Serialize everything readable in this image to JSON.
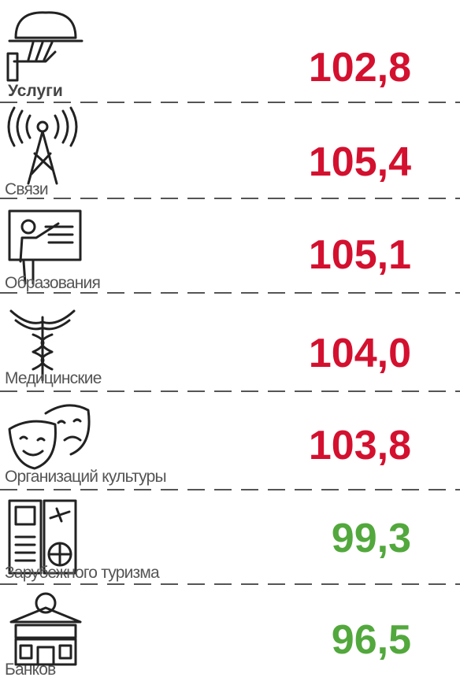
{
  "rows": [
    {
      "label": "Услуги",
      "value": "102,8",
      "color": "#d4102f",
      "bold": true
    },
    {
      "label": "Связи",
      "value": "105,4",
      "color": "#d4102f",
      "bold": false
    },
    {
      "label": "Образования",
      "value": "105,1",
      "color": "#d4102f",
      "bold": false
    },
    {
      "label": "Медицинские",
      "value": "104,0",
      "color": "#d4102f",
      "bold": false
    },
    {
      "label": "Организаций  культуры",
      "value": "103,8",
      "color": "#d4102f",
      "bold": false
    },
    {
      "label": "Зарубежного туризма",
      "value": "99,3",
      "color": "#52a83c",
      "bold": false
    },
    {
      "label": "Банков",
      "value": "96,5",
      "color": "#52a83c",
      "bold": false
    }
  ]
}
